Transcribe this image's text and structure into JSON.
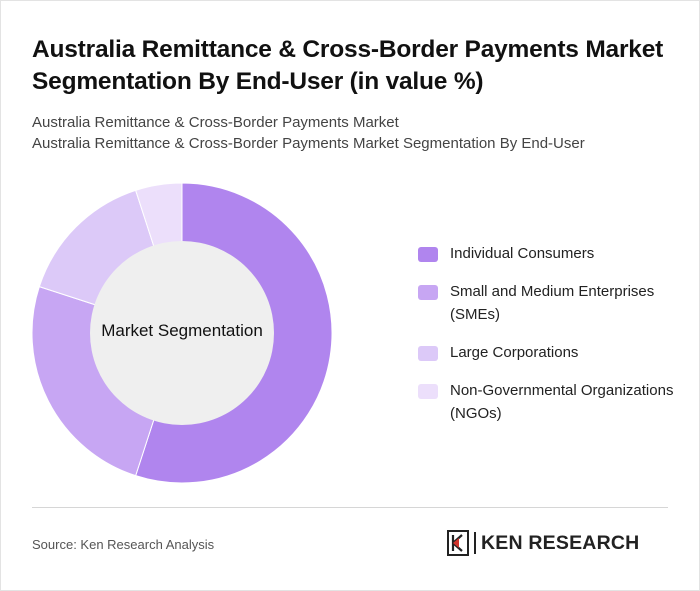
{
  "title": "Australia Remittance & Cross-Border Payments Market Segmentation By End-User (in value %)",
  "subtitle_line1": "Australia Remittance & Cross-Border Payments Market",
  "subtitle_line2": "Australia Remittance & Cross-Border Payments Market Segmentation By End-User",
  "chart_data": {
    "type": "pie",
    "center_label": "Market Segmentation",
    "categories": [
      "Individual Consumers",
      "Small and Medium Enterprises (SMEs)",
      "Large Corporations",
      "Non-Governmental Organizations (NGOs)"
    ],
    "values": [
      55,
      25,
      15,
      5
    ],
    "colors": [
      "#b085ee",
      "#c7a6f3",
      "#dcc9f8",
      "#ecdffb"
    ],
    "legend_position": "right"
  },
  "source": "Source: Ken Research Analysis",
  "logo": {
    "text": "KEN RESEARCH"
  }
}
